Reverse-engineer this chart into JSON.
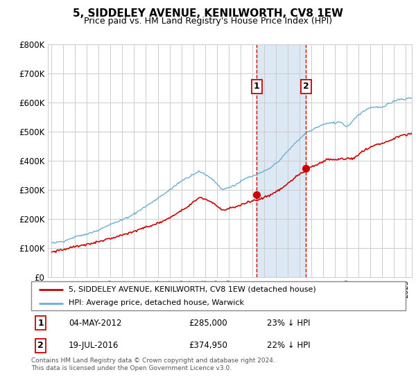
{
  "title": "5, SIDDELEY AVENUE, KENILWORTH, CV8 1EW",
  "subtitle": "Price paid vs. HM Land Registry's House Price Index (HPI)",
  "legend_line1": "5, SIDDELEY AVENUE, KENILWORTH, CV8 1EW (detached house)",
  "legend_line2": "HPI: Average price, detached house, Warwick",
  "transaction1_date": "04-MAY-2012",
  "transaction1_price": "£285,000",
  "transaction1_pct": "23% ↓ HPI",
  "transaction2_date": "19-JUL-2016",
  "transaction2_price": "£374,950",
  "transaction2_pct": "22% ↓ HPI",
  "footer": "Contains HM Land Registry data © Crown copyright and database right 2024.\nThis data is licensed under the Open Government Licence v3.0.",
  "hpi_color": "#6baed6",
  "price_color": "#cc0000",
  "shading_color": "#dce9f5",
  "dashed_color": "#cc0000",
  "ylim_min": 0,
  "ylim_max": 800000,
  "yticks": [
    0,
    100000,
    200000,
    300000,
    400000,
    500000,
    600000,
    700000,
    800000
  ],
  "t1_year": 2012.37,
  "t2_year": 2016.54,
  "p1": 285000,
  "p2": 374950
}
